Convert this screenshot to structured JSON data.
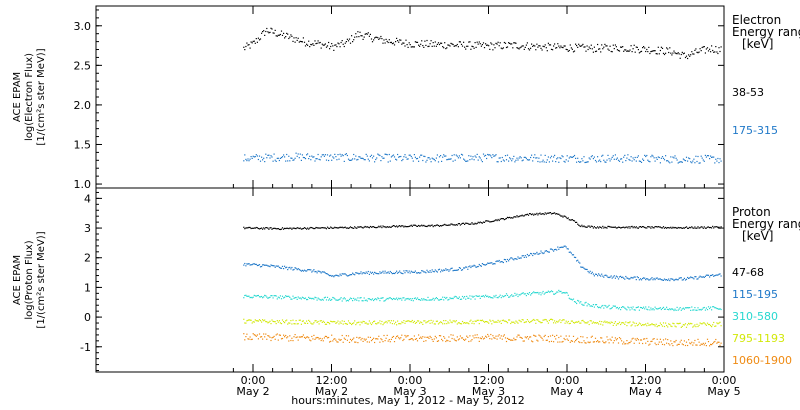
{
  "figure": {
    "xlabel": "hours:minutes, May  1, 2012 - May  5, 2012",
    "x_ticks": [
      {
        "time": "0:00",
        "date": "May 2"
      },
      {
        "time": "12:00",
        "date": "May 2"
      },
      {
        "time": "0:00",
        "date": "May 3"
      },
      {
        "time": "12:00",
        "date": "May 3"
      },
      {
        "time": "0:00",
        "date": "May 4"
      },
      {
        "time": "12:00",
        "date": "May 4"
      },
      {
        "time": "0:00",
        "date": "May 5"
      }
    ]
  },
  "chart_data": [
    {
      "type": "scatter",
      "panel": "electron",
      "ylabel_lines": [
        "ACE EPAM",
        "log(Electron Flux)",
        "[1/(cm²s ster MeV)]"
      ],
      "ylim": [
        0.95,
        3.25
      ],
      "yticks": [
        1.0,
        1.5,
        2.0,
        2.5,
        3.0
      ],
      "ytick_labels": [
        "1.0",
        "1.5",
        "2.0",
        "2.5",
        "3.0"
      ],
      "legend_title": [
        "Electron",
        "Energy ranges",
        "[keV]"
      ],
      "x_domain_hours": [
        0,
        96
      ],
      "series": [
        {
          "name": "38-53",
          "color": "#000000",
          "x_hours": [
            22.5,
            24,
            26,
            28,
            30,
            32,
            34,
            36,
            38,
            40,
            42,
            44,
            46,
            48,
            52,
            56,
            60,
            64,
            68,
            72,
            76,
            80,
            84,
            88,
            90,
            92,
            94,
            95.5
          ],
          "values": [
            2.72,
            2.78,
            2.95,
            2.9,
            2.85,
            2.8,
            2.78,
            2.74,
            2.78,
            2.9,
            2.86,
            2.82,
            2.8,
            2.78,
            2.77,
            2.76,
            2.75,
            2.76,
            2.74,
            2.73,
            2.72,
            2.73,
            2.71,
            2.68,
            2.62,
            2.68,
            2.72,
            2.7
          ]
        },
        {
          "name": "175-315",
          "color": "#1f78c8",
          "x_hours": [
            22.5,
            30,
            40,
            50,
            60,
            70,
            80,
            90,
            95.5
          ],
          "values": [
            1.33,
            1.35,
            1.34,
            1.33,
            1.34,
            1.33,
            1.33,
            1.32,
            1.32
          ]
        }
      ]
    },
    {
      "type": "scatter",
      "panel": "proton",
      "ylabel_lines": [
        "ACE EPAM",
        "log(Proton Flux)",
        "[1/(cm²s ster MeV)]"
      ],
      "ylim": [
        -1.85,
        4.35
      ],
      "yticks": [
        -1,
        0,
        1,
        2,
        3,
        4
      ],
      "ytick_labels": [
        "-1",
        "0",
        "1",
        "2",
        "3",
        "4"
      ],
      "legend_title": [
        "Proton",
        "Energy ranges",
        "[keV]"
      ],
      "x_domain_hours": [
        0,
        96
      ],
      "series": [
        {
          "name": "47-68",
          "color": "#000000",
          "x_hours": [
            22.5,
            28,
            34,
            40,
            46,
            52,
            58,
            62,
            64,
            66,
            68,
            70,
            71.5,
            73,
            74,
            76,
            80,
            86,
            90,
            95.5
          ],
          "values": [
            3.02,
            3.0,
            3.02,
            3.04,
            3.08,
            3.1,
            3.18,
            3.32,
            3.4,
            3.48,
            3.5,
            3.52,
            3.4,
            3.25,
            3.1,
            3.05,
            3.05,
            3.04,
            3.03,
            3.05
          ]
        },
        {
          "name": "115-195",
          "color": "#1f78c8",
          "x_hours": [
            22.5,
            26,
            30,
            34,
            36,
            40,
            44,
            50,
            56,
            62,
            66,
            68,
            70,
            71.5,
            73,
            74,
            76,
            80,
            86,
            90,
            95.5
          ],
          "values": [
            1.8,
            1.75,
            1.65,
            1.55,
            1.4,
            1.5,
            1.52,
            1.55,
            1.65,
            1.9,
            2.1,
            2.2,
            2.3,
            2.42,
            2.05,
            1.75,
            1.45,
            1.35,
            1.3,
            1.3,
            1.45
          ]
        },
        {
          "name": "310-580",
          "color": "#28d8d0",
          "x_hours": [
            22.5,
            30,
            36,
            44,
            52,
            60,
            66,
            70,
            71.5,
            73,
            76,
            80,
            86,
            90,
            95.5
          ],
          "values": [
            0.72,
            0.68,
            0.62,
            0.62,
            0.64,
            0.7,
            0.8,
            0.85,
            0.88,
            0.55,
            0.4,
            0.32,
            0.3,
            0.3,
            0.32
          ]
        },
        {
          "name": "795-1193",
          "color": "#d2e80a",
          "x_hours": [
            22.5,
            30,
            40,
            50,
            60,
            70,
            80,
            90,
            95.5
          ],
          "values": [
            -0.12,
            -0.15,
            -0.18,
            -0.16,
            -0.14,
            -0.12,
            -0.2,
            -0.26,
            -0.22
          ]
        },
        {
          "name": "1060-1900",
          "color": "#ef8a12",
          "x_hours": [
            22.5,
            30,
            40,
            50,
            60,
            70,
            80,
            90,
            95.5
          ],
          "values": [
            -0.65,
            -0.68,
            -0.72,
            -0.7,
            -0.68,
            -0.7,
            -0.78,
            -0.85,
            -0.82
          ]
        }
      ]
    }
  ]
}
